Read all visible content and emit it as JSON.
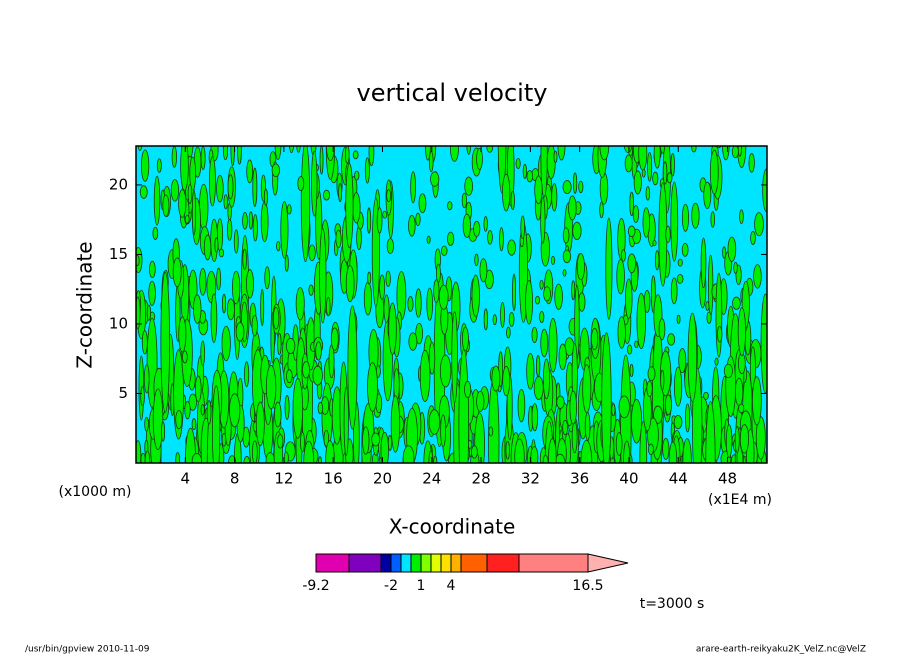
{
  "chart_data": {
    "type": "contour",
    "title": "vertical velocity",
    "xlabel": "X-coordinate",
    "ylabel": "Z-coordinate",
    "x_unit_left": "(x1000 m)",
    "x_unit_right": "(x1E4 m)",
    "xlim": [
      0,
      51.2
    ],
    "xticks": [
      4,
      8,
      12,
      16,
      20,
      24,
      28,
      32,
      36,
      40,
      44,
      48
    ],
    "ylim": [
      0,
      22.8
    ],
    "yticks": [
      5,
      10,
      15,
      20
    ],
    "background_color": "#00e5ff",
    "contour_color": "#00ee00",
    "colorbar": {
      "levels": [
        -9.2,
        -6,
        -3,
        -2,
        -1,
        0,
        1,
        2,
        3,
        4,
        6,
        8,
        11,
        16.5
      ],
      "colors": [
        "#e000b0",
        "#8000c0",
        "#0000a0",
        "#0060ff",
        "#00e5ff",
        "#00ee00",
        "#80ff00",
        "#e0ff00",
        "#ffe000",
        "#ffb000",
        "#ff6000",
        "#ff2020",
        "#ff8080"
      ],
      "extend_color": "#ffb0b0",
      "ticks": [
        -9.2,
        -2,
        1,
        4,
        16.5
      ]
    },
    "time_label": "t=3000 s",
    "footer_left": "/usr/bin/gpview  2010-11-09",
    "footer_right": "arare-earth-reikyaku2K_VelZ.nc@VelZ"
  }
}
